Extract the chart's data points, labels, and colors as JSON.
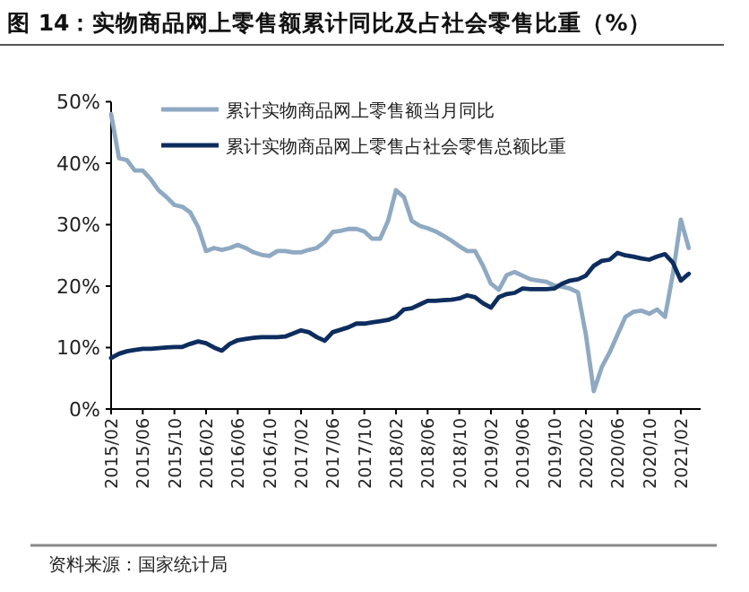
{
  "chart_data": {
    "type": "line",
    "title": "图 14：实物商品网上零售额累计同比及占社会零售比重（%）",
    "categories": [
      "2015/02",
      null,
      null,
      null,
      "2015/06",
      null,
      null,
      null,
      "2015/10",
      null,
      null,
      null,
      "2016/02",
      null,
      null,
      null,
      "2016/06",
      null,
      null,
      null,
      "2016/10",
      null,
      null,
      null,
      "2017/02",
      null,
      null,
      null,
      "2017/06",
      null,
      null,
      null,
      "2017/10",
      null,
      null,
      null,
      "2018/02",
      null,
      null,
      null,
      "2018/06",
      null,
      null,
      null,
      "2018/10",
      null,
      null,
      null,
      "2019/02",
      null,
      null,
      null,
      "2019/06",
      null,
      null,
      null,
      "2019/10",
      null,
      null,
      null,
      "2020/02",
      null,
      null,
      null,
      "2020/06",
      null,
      null,
      null,
      "2020/10",
      null,
      null,
      null,
      "2021/02",
      null
    ],
    "series": [
      {
        "name": "累计实物商品网上零售额当月同比",
        "color": "#8fa9c2",
        "values": [
          48,
          40.8,
          40.5,
          38.8,
          38.8,
          37.4,
          35.6,
          34.5,
          33.2,
          32.9,
          32,
          29.6,
          25.7,
          26.2,
          25.9,
          26.2,
          26.7,
          26.2,
          25.5,
          25.1,
          24.9,
          25.7,
          25.7,
          25.5,
          25.5,
          25.9,
          26.2,
          27.2,
          28.8,
          29,
          29.3,
          29.3,
          28.9,
          27.7,
          27.7,
          30.6,
          35.6,
          34.5,
          30.6,
          29.8,
          29.4,
          28.9,
          28.2,
          27.4,
          26.5,
          25.7,
          25.7,
          23.3,
          20.4,
          19.4,
          21.8,
          22.3,
          21.7,
          21.1,
          20.9,
          20.7,
          20.1,
          19.9,
          19.6,
          19,
          12.1,
          2.9,
          6.8,
          9.2,
          12.1,
          15,
          15.8,
          16,
          15.5,
          16.2,
          15,
          22,
          30.8,
          26.2
        ]
      },
      {
        "name": "累计实物商品网上零售占社会零售总额比重",
        "color": "#0d2d5e",
        "values": [
          8.3,
          9,
          9.4,
          9.6,
          9.8,
          9.8,
          9.9,
          10,
          10.1,
          10.1,
          10.6,
          11,
          10.7,
          10,
          9.5,
          10.6,
          11.2,
          11.4,
          11.6,
          11.7,
          11.7,
          11.7,
          11.8,
          12.3,
          12.8,
          12.5,
          11.7,
          11.1,
          12.5,
          12.9,
          13.3,
          13.9,
          13.9,
          14.1,
          14.3,
          14.5,
          15,
          16.2,
          16.4,
          17,
          17.6,
          17.6,
          17.7,
          17.8,
          18,
          18.5,
          18.2,
          17.2,
          16.5,
          18.2,
          18.7,
          18.9,
          19.6,
          19.5,
          19.5,
          19.5,
          19.6,
          20.4,
          20.9,
          21.1,
          21.7,
          23.3,
          24.1,
          24.3,
          25.4,
          25,
          24.8,
          24.5,
          24.3,
          24.8,
          25.2,
          23.8,
          20.9,
          22
        ]
      }
    ],
    "ylim": [
      0,
      50
    ],
    "yticks": [
      {
        "value": 0,
        "label": "0%"
      },
      {
        "value": 10,
        "label": "10%"
      },
      {
        "value": 20,
        "label": "20%"
      },
      {
        "value": 30,
        "label": "30%"
      },
      {
        "value": 40,
        "label": "40%"
      },
      {
        "value": 50,
        "label": "50%"
      }
    ],
    "legend": "top left",
    "annotations": [
      "资料来源：国家统计局"
    ]
  }
}
